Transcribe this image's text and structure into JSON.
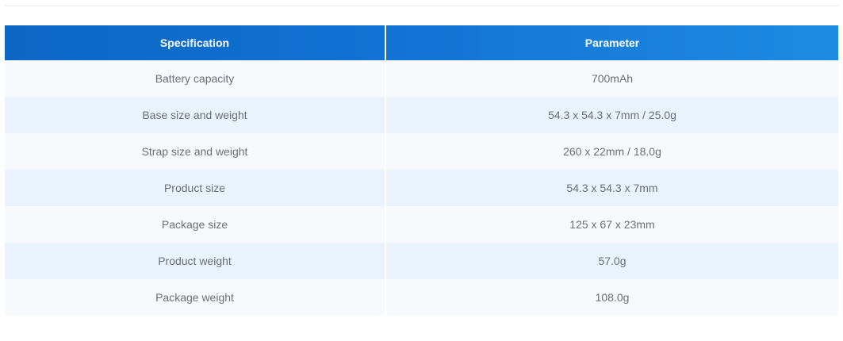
{
  "table": {
    "headers": [
      "Specification",
      "Parameter"
    ],
    "rows": [
      [
        "Battery capacity",
        "700mAh"
      ],
      [
        "Base size and weight",
        "54.3 x 54.3 x 7mm / 25.0g"
      ],
      [
        "Strap size and weight",
        "260 x 22mm / 18.0g"
      ],
      [
        "Product size",
        "54.3 x 54.3 x 7mm"
      ],
      [
        "Package size",
        "125 x 67 x 23mm"
      ],
      [
        "Product weight",
        "57.0g"
      ],
      [
        "Package weight",
        "108.0g"
      ]
    ]
  },
  "colors": {
    "header_gradient_start": "#0b66c4",
    "header_gradient_end": "#1e8be2",
    "row_light": "#f7f9fc",
    "row_blue": "#eaf3fd",
    "cell_text": "#6b6f75"
  }
}
